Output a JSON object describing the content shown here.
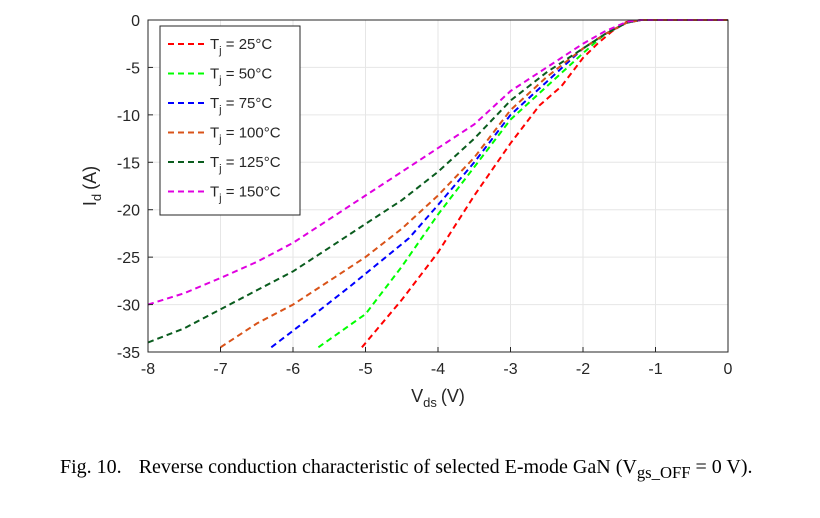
{
  "chart_data": {
    "type": "line",
    "title": "",
    "xlabel": "V",
    "xlabel_sub": "ds",
    "xlabel_unit": "(V)",
    "ylabel": "I",
    "ylabel_sub": "d",
    "ylabel_unit": "(A)",
    "xlim": [
      -8,
      0
    ],
    "ylim": [
      -35,
      0
    ],
    "xticks": [
      -8,
      -7,
      -6,
      -5,
      -4,
      -3,
      -2,
      -1,
      0
    ],
    "yticks": [
      0,
      -5,
      -10,
      -15,
      -20,
      -25,
      -30,
      -35
    ],
    "grid": true,
    "legend_placement": "top-left",
    "line_style": "dashed",
    "series": [
      {
        "name": "T",
        "name_sub": "j",
        "name_rest": " = 25°C",
        "color": "#ff0000",
        "x": [
          -5.05,
          -4.5,
          -4.0,
          -3.5,
          -3.0,
          -2.6,
          -2.3,
          -2.0,
          -1.8,
          -1.6,
          -1.4,
          -1.2,
          -1.0,
          -0.5,
          0
        ],
        "y": [
          -34.5,
          -29.5,
          -24.5,
          -18.5,
          -13.0,
          -9.0,
          -7.0,
          -4.0,
          -2.5,
          -1.2,
          -0.2,
          0,
          0,
          0,
          0
        ]
      },
      {
        "name": "T",
        "name_sub": "j",
        "name_rest": " = 50°C",
        "color": "#00ff00",
        "x": [
          -5.65,
          -5.0,
          -4.5,
          -4.0,
          -3.5,
          -3.0,
          -2.5,
          -2.0,
          -1.7,
          -1.4,
          -1.2,
          -1.0,
          -0.5,
          0
        ],
        "y": [
          -34.5,
          -31.0,
          -26.0,
          -20.5,
          -15.5,
          -10.5,
          -7.0,
          -3.5,
          -1.5,
          -0.3,
          0,
          0,
          0,
          0
        ]
      },
      {
        "name": "T",
        "name_sub": "j",
        "name_rest": " = 75°C",
        "color": "#0000ff",
        "x": [
          -6.3,
          -5.7,
          -5.2,
          -4.8,
          -4.4,
          -4.0,
          -3.5,
          -3.0,
          -2.5,
          -2.0,
          -1.7,
          -1.4,
          -1.2,
          -1.0,
          -0.5,
          0
        ],
        "y": [
          -34.5,
          -31.0,
          -28.0,
          -25.5,
          -23.0,
          -19.5,
          -15.0,
          -10.0,
          -6.5,
          -3.0,
          -1.5,
          -0.3,
          0,
          0,
          0,
          0
        ]
      },
      {
        "name": "T",
        "name_sub": "j",
        "name_rest": " = 100°C",
        "color": "#d95319",
        "x": [
          -7.0,
          -6.5,
          -6.0,
          -5.5,
          -5.0,
          -4.5,
          -4.0,
          -3.5,
          -3.0,
          -2.5,
          -2.0,
          -1.7,
          -1.4,
          -1.2,
          -1.0,
          -0.5,
          0
        ],
        "y": [
          -34.5,
          -32.0,
          -30.0,
          -27.5,
          -25.0,
          -22.0,
          -18.5,
          -14.5,
          -9.5,
          -6.0,
          -3.0,
          -1.5,
          -0.3,
          0,
          0,
          0,
          0
        ]
      },
      {
        "name": "T",
        "name_sub": "j",
        "name_rest": " = 125°C",
        "color": "#0a5c1e",
        "x": [
          -8.0,
          -7.5,
          -7.0,
          -6.5,
          -6.0,
          -5.5,
          -5.0,
          -4.5,
          -4.0,
          -3.5,
          -3.0,
          -2.5,
          -2.0,
          -1.7,
          -1.4,
          -1.2,
          -1.0,
          -0.5,
          0
        ],
        "y": [
          -34.0,
          -32.5,
          -30.5,
          -28.5,
          -26.5,
          -24.0,
          -21.5,
          -19.0,
          -16.0,
          -12.5,
          -8.5,
          -5.5,
          -3.0,
          -1.5,
          -0.3,
          0,
          0,
          0,
          0
        ]
      },
      {
        "name": "T",
        "name_sub": "j",
        "name_rest": " = 150°C",
        "color": "#e000e0",
        "x": [
          -8.0,
          -7.5,
          -7.0,
          -6.5,
          -6.0,
          -5.5,
          -5.0,
          -4.5,
          -4.0,
          -3.5,
          -3.0,
          -2.5,
          -2.0,
          -1.7,
          -1.4,
          -1.2,
          -1.0,
          -0.5,
          0
        ],
        "y": [
          -30.0,
          -28.8,
          -27.2,
          -25.5,
          -23.5,
          -21.0,
          -18.5,
          -16.0,
          -13.5,
          -11.0,
          -7.5,
          -5.0,
          -2.5,
          -1.2,
          -0.2,
          0,
          0,
          0,
          0
        ]
      }
    ]
  },
  "caption": {
    "label": "Fig. 10.",
    "text": "Reverse conduction characteristic of selected E-mode GaN (V",
    "sub": "gs_OFF",
    "rest": " = 0 V)."
  }
}
